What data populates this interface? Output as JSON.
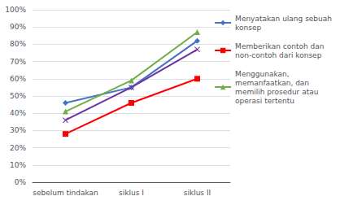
{
  "chart_data": {
    "type": "line",
    "categories": [
      "sebelum tindakan",
      "siklus I",
      "siklus II"
    ],
    "series": [
      {
        "name": "Menyatakan ulang sebuah\nkonsep",
        "color": "#4472C4",
        "marker": "diamond",
        "values": [
          0.46,
          0.55,
          0.82
        ]
      },
      {
        "name": "Memberikan contoh dan\nnon-contoh dari konsep",
        "color": "#FF0000",
        "marker": "square",
        "values": [
          0.28,
          0.46,
          0.6
        ]
      },
      {
        "name": "Menggunakan,\nmemanfaatkan, dan\nmemilih prosedur atau\noperasi tertentu",
        "color": "#70AD47",
        "marker": "triangle",
        "values": [
          0.41,
          0.59,
          0.87
        ]
      },
      {
        "color": "#7030A0",
        "marker": "x",
        "values": [
          0.36,
          0.55,
          0.77
        ]
      }
    ],
    "ylim": [
      0.0,
      1.0
    ],
    "yticks": [
      {
        "value": 0.0,
        "label": "0%"
      },
      {
        "value": 0.1,
        "label": "10%"
      },
      {
        "value": 0.2,
        "label": "20%"
      },
      {
        "value": 0.3,
        "label": "30%"
      },
      {
        "value": 0.4,
        "label": "40%"
      },
      {
        "value": 0.5,
        "label": "50%"
      },
      {
        "value": 0.6,
        "label": "60%"
      },
      {
        "value": 0.7,
        "label": "70%"
      },
      {
        "value": 0.8,
        "label": "80%"
      },
      {
        "value": 0.9,
        "label": "90%"
      },
      {
        "value": 1.0,
        "label": "100%"
      }
    ],
    "grid": true,
    "legend": "right"
  }
}
